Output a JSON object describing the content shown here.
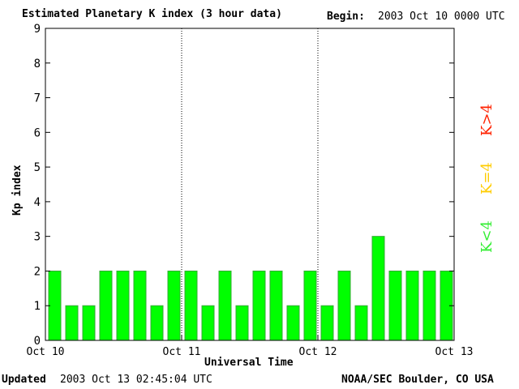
{
  "header": {
    "title": "Estimated Planetary K index (3 hour data)",
    "begin_label": "Begin:",
    "begin_value": "2003 Oct 10 0000 UTC"
  },
  "footer": {
    "updated_label": "Updated",
    "updated_value": "2003 Oct 13 02:45:04 UTC",
    "source": "NOAA/SEC Boulder, CO USA"
  },
  "legend": {
    "high": {
      "text": "K>4",
      "color": "#ff2200"
    },
    "equal": {
      "text": "K=4",
      "color": "#ffcc00"
    },
    "low": {
      "text": "K<4",
      "color": "#33ee33"
    }
  },
  "colors": {
    "bar": "#00ff00",
    "bar_outline": "#33aa33"
  },
  "chart_data": {
    "type": "bar",
    "title": "Estimated Planetary K index (3 hour data)",
    "xlabel": "Universal Time",
    "ylabel": "Kp index",
    "ylim": [
      0,
      9
    ],
    "yticks": [
      "0",
      "1",
      "2",
      "3",
      "4",
      "5",
      "6",
      "7",
      "8",
      "9"
    ],
    "xticks": [
      "Oct 10",
      "Oct 11",
      "Oct 12",
      "Oct 13"
    ],
    "day_dividers": true,
    "values": [
      2,
      1,
      1,
      2,
      2,
      2,
      1,
      2,
      2,
      1,
      2,
      1,
      2,
      2,
      1,
      2,
      1,
      2,
      1,
      3,
      2,
      2,
      2,
      2
    ]
  }
}
